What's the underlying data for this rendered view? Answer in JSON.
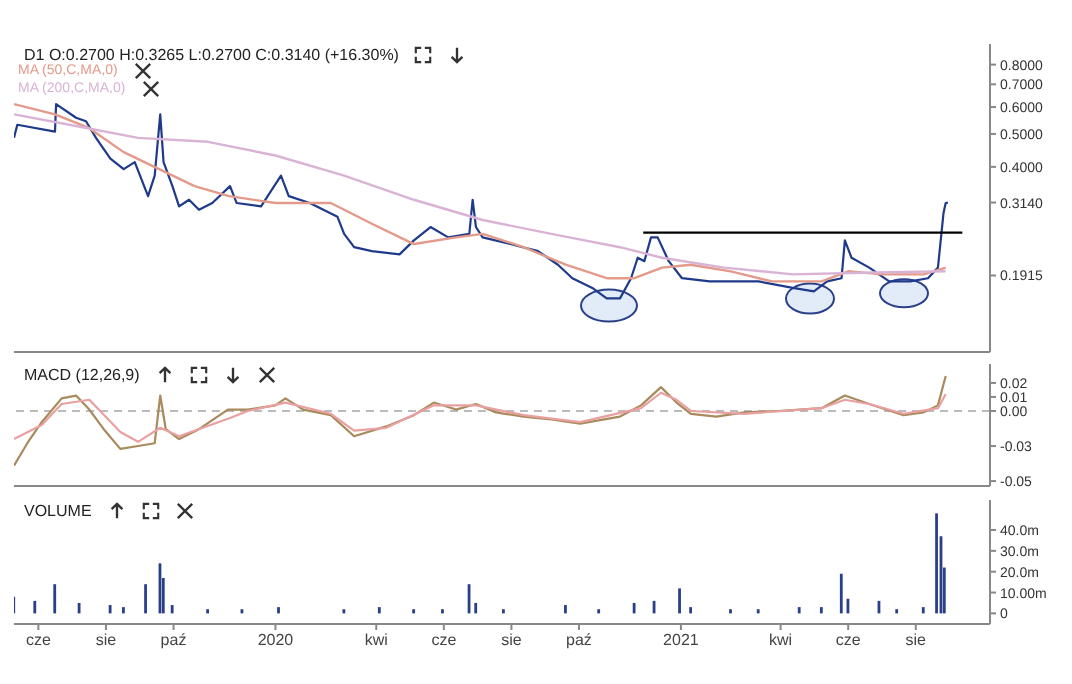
{
  "chart_data": [
    {
      "type": "line",
      "title": "D1 O:0.2700 H:0.3265 L:0.2700 C:0.3140 (+16.30%)",
      "log": "y",
      "legend": "top left",
      "tick_labels": "y",
      "xlim": [
        "2019-05-10",
        "2021-10-07"
      ],
      "ylim": [
        0.114,
        0.92
      ],
      "yticks": [
        {
          "value": 0.8,
          "label": "0.8000"
        },
        {
          "value": 0.7,
          "label": "0.7000"
        },
        {
          "value": 0.6,
          "label": "0.6000"
        },
        {
          "value": 0.5,
          "label": "0.5000"
        },
        {
          "value": 0.4,
          "label": "0.4000"
        },
        {
          "value": 0.314,
          "label": "0.3140"
        },
        {
          "value": 0.1915,
          "label": "0.1915"
        }
      ],
      "series": [
        {
          "color": "#1f3a8a",
          "x": [
            "2019-05-10",
            "2019-05-13",
            "2019-06-16",
            "2019-06-17",
            "2019-07-05",
            "2019-07-14",
            "2019-07-23",
            "2019-08-05",
            "2019-08-17",
            "2019-08-27",
            "2019-09-08",
            "2019-09-14",
            "2019-09-19",
            "2019-09-22",
            "2019-09-30",
            "2019-10-06",
            "2019-10-15",
            "2019-10-24",
            "2019-11-05",
            "2019-11-21",
            "2019-11-27",
            "2019-12-19",
            "2020-01-06",
            "2020-01-13",
            "2020-02-01",
            "2020-02-26",
            "2020-03-03",
            "2020-03-12",
            "2020-03-28",
            "2020-04-22",
            "2020-05-05",
            "2020-05-20",
            "2020-06-05",
            "2020-06-24",
            "2020-06-27",
            "2020-06-30",
            "2020-07-06",
            "2020-07-31",
            "2020-08-25",
            "2020-09-12",
            "2020-09-25",
            "2020-10-13",
            "2020-10-26",
            "2020-11-07",
            "2020-11-17",
            "2020-11-23",
            "2020-11-29",
            "2020-12-05",
            "2020-12-11",
            "2020-12-21",
            "2021-01-02",
            "2021-01-27",
            "2021-02-21",
            "2021-03-12",
            "2021-04-12",
            "2021-05-01",
            "2021-05-13",
            "2021-05-26",
            "2021-05-29",
            "2021-06-04",
            "2021-06-20",
            "2021-07-08",
            "2021-07-27",
            "2021-08-12",
            "2021-08-21",
            "2021-08-26",
            "2021-08-28",
            "2021-08-30"
          ],
          "values": [
            0.487,
            0.532,
            0.508,
            0.612,
            0.558,
            0.545,
            0.487,
            0.423,
            0.394,
            0.413,
            0.328,
            0.377,
            0.571,
            0.413,
            0.351,
            0.306,
            0.32,
            0.299,
            0.313,
            0.351,
            0.313,
            0.306,
            0.377,
            0.328,
            0.313,
            0.285,
            0.254,
            0.232,
            0.226,
            0.221,
            0.243,
            0.266,
            0.248,
            0.254,
            0.32,
            0.266,
            0.248,
            0.237,
            0.226,
            0.206,
            0.188,
            0.176,
            0.164,
            0.164,
            0.188,
            0.216,
            0.211,
            0.248,
            0.248,
            0.211,
            0.188,
            0.184,
            0.184,
            0.184,
            0.176,
            0.172,
            0.184,
            0.188,
            0.243,
            0.216,
            0.202,
            0.184,
            0.184,
            0.188,
            0.202,
            0.292,
            0.313,
            0.314
          ]
        },
        {
          "name": "MA (50,C,MA,0)",
          "color": "#e39a8a",
          "x": [
            "2019-05-10",
            "2019-06-16",
            "2019-07-17",
            "2019-08-17",
            "2019-09-18",
            "2019-10-20",
            "2019-11-20",
            "2020-01-01",
            "2020-02-20",
            "2020-03-28",
            "2020-05-05",
            "2020-06-12",
            "2020-07-06",
            "2020-08-12",
            "2020-09-19",
            "2020-10-26",
            "2020-11-20",
            "2020-12-15",
            "2021-01-10",
            "2021-02-15",
            "2021-03-24",
            "2021-05-08",
            "2021-06-01",
            "2021-07-02",
            "2021-08-08",
            "2021-08-28"
          ],
          "values": [
            0.612,
            0.571,
            0.52,
            0.442,
            0.394,
            0.351,
            0.328,
            0.313,
            0.313,
            0.272,
            0.237,
            0.248,
            0.254,
            0.232,
            0.206,
            0.188,
            0.188,
            0.202,
            0.206,
            0.197,
            0.184,
            0.184,
            0.197,
            0.193,
            0.193,
            0.202
          ]
        },
        {
          "name": "MA (200,C,MA,0)",
          "color": "#d9b3d6",
          "x": [
            "2019-05-10",
            "2019-06-29",
            "2019-08-30",
            "2019-11-01",
            "2020-01-01",
            "2020-03-03",
            "2020-05-05",
            "2020-07-06",
            "2020-09-06",
            "2020-11-07",
            "2020-12-15",
            "2021-02-09",
            "2021-04-12",
            "2021-06-13",
            "2021-08-28"
          ],
          "values": [
            0.571,
            0.532,
            0.487,
            0.474,
            0.432,
            0.377,
            0.32,
            0.279,
            0.254,
            0.232,
            0.216,
            0.202,
            0.193,
            0.195,
            0.197
          ]
        },
        {
          "type": "line",
          "color": "#000000",
          "x": [
            "2020-11-28",
            "2021-09-12"
          ],
          "values": [
            0.256,
            0.256
          ]
        }
      ]
    },
    {
      "type": "line",
      "title": "MACD (12,26,9)",
      "tick_labels": "y",
      "xlim": [
        "2019-05-10",
        "2021-10-07"
      ],
      "ylim": [
        -0.0535,
        0.0335
      ],
      "yticks": [
        {
          "value": 0.02,
          "label": "0.02"
        },
        {
          "value": 0.01,
          "label": "0.01"
        },
        {
          "value": 0,
          "label": "0.00"
        },
        {
          "value": -0.025,
          "label": "-0.03"
        },
        {
          "value": -0.05,
          "label": "-0.05"
        }
      ],
      "ref_lines": [
        {
          "axis": "y",
          "value": 0,
          "color": "#bbbbbb",
          "line_style": "dashed"
        }
      ],
      "series": [
        {
          "color": "#a88a5c",
          "x": [
            "2019-05-10",
            "2019-05-22",
            "2019-06-04",
            "2019-06-22",
            "2019-07-05",
            "2019-07-17",
            "2019-07-30",
            "2019-08-14",
            "2019-08-30",
            "2019-09-14",
            "2019-09-19",
            "2019-09-24",
            "2019-10-06",
            "2019-10-24",
            "2019-11-19",
            "2019-12-07",
            "2020-01-01",
            "2020-01-10",
            "2020-01-26",
            "2020-02-20",
            "2020-03-12",
            "2020-04-10",
            "2020-05-05",
            "2020-05-23",
            "2020-06-12",
            "2020-06-30",
            "2020-07-18",
            "2020-08-12",
            "2020-09-06",
            "2020-10-02",
            "2020-11-07",
            "2020-11-26",
            "2020-12-14",
            "2020-12-28",
            "2021-01-10",
            "2021-02-02",
            "2021-02-27",
            "2021-03-30",
            "2021-05-08",
            "2021-05-29",
            "2021-06-20",
            "2021-07-21",
            "2021-08-08",
            "2021-08-21",
            "2021-08-28"
          ],
          "values": [
            -0.039,
            -0.023,
            -0.008,
            0.009,
            0.011,
            0.001,
            -0.013,
            -0.027,
            -0.025,
            -0.023,
            0.011,
            -0.013,
            -0.02,
            -0.013,
            0.001,
            0.001,
            0.004,
            0.009,
            0.001,
            -0.003,
            -0.018,
            -0.011,
            -0.003,
            0.006,
            0.001,
            0.005,
            -0.001,
            -0.004,
            -0.006,
            -0.009,
            -0.004,
            0.004,
            0.017,
            0.006,
            -0.002,
            -0.004,
            -0.001,
            0.0,
            0.002,
            0.011,
            0.005,
            -0.003,
            -0.001,
            0.004,
            0.025
          ]
        },
        {
          "color": "#e8a0a0",
          "x": [
            "2019-05-10",
            "2019-06-04",
            "2019-06-22",
            "2019-07-17",
            "2019-08-14",
            "2019-08-30",
            "2019-09-19",
            "2019-10-06",
            "2019-11-21",
            "2019-12-07",
            "2020-01-10",
            "2020-02-20",
            "2020-03-12",
            "2020-04-10",
            "2020-05-23",
            "2020-06-30",
            "2020-08-12",
            "2020-10-02",
            "2020-11-26",
            "2020-12-14",
            "2020-12-28",
            "2021-01-10",
            "2021-02-27",
            "2021-05-08",
            "2021-05-29",
            "2021-06-20",
            "2021-07-21",
            "2021-08-21",
            "2021-08-28"
          ],
          "values": [
            -0.02,
            -0.01,
            0.005,
            0.008,
            -0.015,
            -0.022,
            -0.012,
            -0.018,
            -0.005,
            0.0,
            0.006,
            -0.002,
            -0.014,
            -0.012,
            0.004,
            0.004,
            -0.003,
            -0.008,
            0.002,
            0.013,
            0.008,
            0.0,
            -0.002,
            0.002,
            0.008,
            0.005,
            -0.002,
            0.002,
            0.012
          ]
        }
      ]
    },
    {
      "type": "bar",
      "title": "VOLUME",
      "color": "#2a3f8a",
      "xlim": [
        "2019-05-10",
        "2021-10-07"
      ],
      "ylim": [
        -5.1,
        54.4
      ],
      "xticks": [
        {
          "value": "2019-06-01",
          "label": "cze"
        },
        {
          "value": "2019-08-01",
          "label": "sie"
        },
        {
          "value": "2019-10-01",
          "label": "paź"
        },
        "2020",
        {
          "value": "2020-04-01",
          "label": "kwi"
        },
        {
          "value": "2020-06-01",
          "label": "cze"
        },
        {
          "value": "2020-08-01",
          "label": "sie"
        },
        {
          "value": "2020-10-01",
          "label": "paź"
        },
        "2021",
        {
          "value": "2021-04-01",
          "label": "kwi"
        },
        {
          "value": "2021-06-01",
          "label": "cze"
        },
        {
          "value": "2021-08-01",
          "label": "sie"
        }
      ],
      "yticks": [
        0,
        {
          "value": 10,
          "label": "10.00m"
        },
        {
          "value": 20,
          "label": "20.0m"
        },
        {
          "value": 30,
          "label": "30.0m"
        },
        {
          "value": 40,
          "label": "40.0m"
        }
      ],
      "x": [
        "2019-05-10",
        "2019-05-29",
        "2019-06-16",
        "2019-07-08",
        "2019-08-05",
        "2019-08-17",
        "2019-09-06",
        "2019-09-19",
        "2019-09-22",
        "2019-09-30",
        "2019-11-01",
        "2019-12-02",
        "2020-01-04",
        "2020-03-03",
        "2020-04-04",
        "2020-05-05",
        "2020-05-31",
        "2020-06-24",
        "2020-06-30",
        "2020-07-25",
        "2020-09-19",
        "2020-10-19",
        "2020-11-20",
        "2020-12-08",
        "2020-12-31",
        "2021-01-10",
        "2021-02-15",
        "2021-03-12",
        "2021-04-18",
        "2021-05-08",
        "2021-05-26",
        "2021-06-01",
        "2021-06-29",
        "2021-07-15",
        "2021-08-08",
        "2021-08-20",
        "2021-08-24",
        "2021-08-27"
      ],
      "values": [
        8,
        6,
        14,
        5,
        4,
        3,
        14,
        24,
        17,
        4,
        2,
        2,
        3,
        2,
        3,
        2,
        2,
        14,
        5,
        2,
        4,
        2,
        5,
        6,
        12,
        3,
        2,
        2,
        3,
        3,
        19,
        7,
        6,
        2,
        3,
        48,
        37,
        22
      ]
    }
  ]
}
